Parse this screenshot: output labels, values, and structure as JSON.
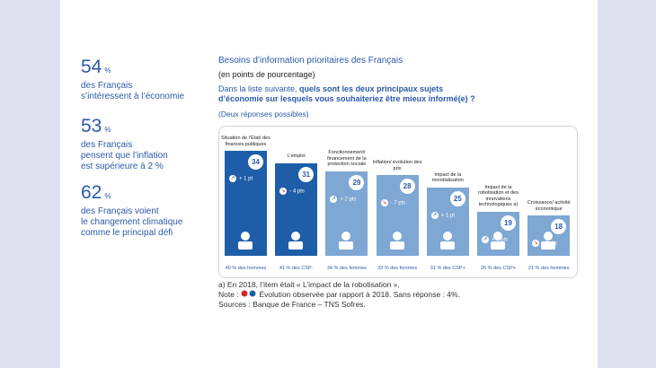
{
  "side_stats": [
    {
      "value": 54,
      "unit": "%",
      "lines": [
        "des Français",
        "s’intéressent à l’économie"
      ]
    },
    {
      "value": 53,
      "unit": "%",
      "lines": [
        "des Français",
        "pensent que l’inflation",
        "est supérieure à 2 %"
      ]
    },
    {
      "value": 62,
      "unit": "%",
      "lines": [
        "des Français voient",
        "le changement climatique",
        "comme le principal défi"
      ]
    }
  ],
  "chart_data": {
    "type": "bar",
    "title": "Besoins d’information prioritaires des Français",
    "subtitle": "(en points de pourcentage)",
    "question_intro": "Dans la liste suivante, ",
    "question_bold": "quels sont les deux principaux sujets d’économie sur lesquels vous souhaiteriez être mieux informé(e) ?",
    "question_note": "(Deux réponses possibles)",
    "categories": [
      "Situation de l’État/ des finances publiques",
      "L’emploi",
      "Fonctionnement/ financement de la protection sociale",
      "Inflation/ évolution des prix",
      "Impact de la mondialisation",
      "Impact de la robotisation et des innovations technologiques a)",
      "Croissance/ activité économique"
    ],
    "values": [
      34,
      31,
      29,
      28,
      25,
      19,
      18
    ],
    "colors": [
      "#1e5ea8",
      "#1e5ea8",
      "#7ea7d4",
      "#7ea7d4",
      "#7ea7d4",
      "#7ea7d4",
      "#7ea7d4"
    ],
    "changes": [
      "+ 1 pt",
      "- 4 pts",
      "+ 2 pts",
      "- 7 pts",
      "+ 1 pt",
      "+ 4 pts",
      "- 3 pts"
    ],
    "change_directions": [
      "up",
      "down",
      "up",
      "down",
      "up",
      "up",
      "down"
    ],
    "subgroups": [
      "40 % des hommes",
      "41 % des CSP-",
      "34 % des femmes",
      "33 % des femmes",
      "31 % des CSP+",
      "26 % des CSP+",
      "21 % des hommes"
    ],
    "ylim": [
      8,
      36
    ],
    "footnotes": [
      "a) En 2018, l’item était « L’impact de la robotisation ».",
      "Note :",
      "Évolution observée par rapport à 2018. Sans réponse : 4%.",
      "Sources : Banque de France – TNS Sofres."
    ]
  }
}
